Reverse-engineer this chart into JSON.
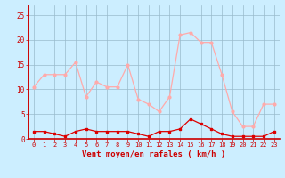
{
  "hours": [
    0,
    1,
    2,
    3,
    4,
    5,
    6,
    7,
    8,
    9,
    10,
    11,
    12,
    13,
    14,
    15,
    16,
    17,
    18,
    19,
    20,
    21,
    22,
    23
  ],
  "rafales": [
    10.5,
    13,
    13,
    13,
    15.5,
    8.5,
    11.5,
    10.5,
    10.5,
    15,
    8,
    7,
    5.5,
    8.5,
    21,
    21.5,
    19.5,
    19.5,
    13,
    5.5,
    2.5,
    2.5,
    7,
    7
  ],
  "moyen": [
    1.5,
    1.5,
    1,
    0.5,
    1.5,
    2,
    1.5,
    1.5,
    1.5,
    1.5,
    1,
    0.5,
    1.5,
    1.5,
    2,
    4,
    3,
    2,
    1,
    0.5,
    0.5,
    0.5,
    0.5,
    1.5
  ],
  "rafales_color": "#ffaaaa",
  "moyen_color": "#dd0000",
  "background_color": "#cceeff",
  "grid_color": "#99bbcc",
  "axis_color": "#cc0000",
  "text_color": "#cc0000",
  "xlabel": "Vent moyen/en rafales ( km/h )",
  "ylim": [
    0,
    27
  ],
  "yticks": [
    0,
    5,
    10,
    15,
    20,
    25
  ],
  "xlim": [
    -0.5,
    23.5
  ]
}
